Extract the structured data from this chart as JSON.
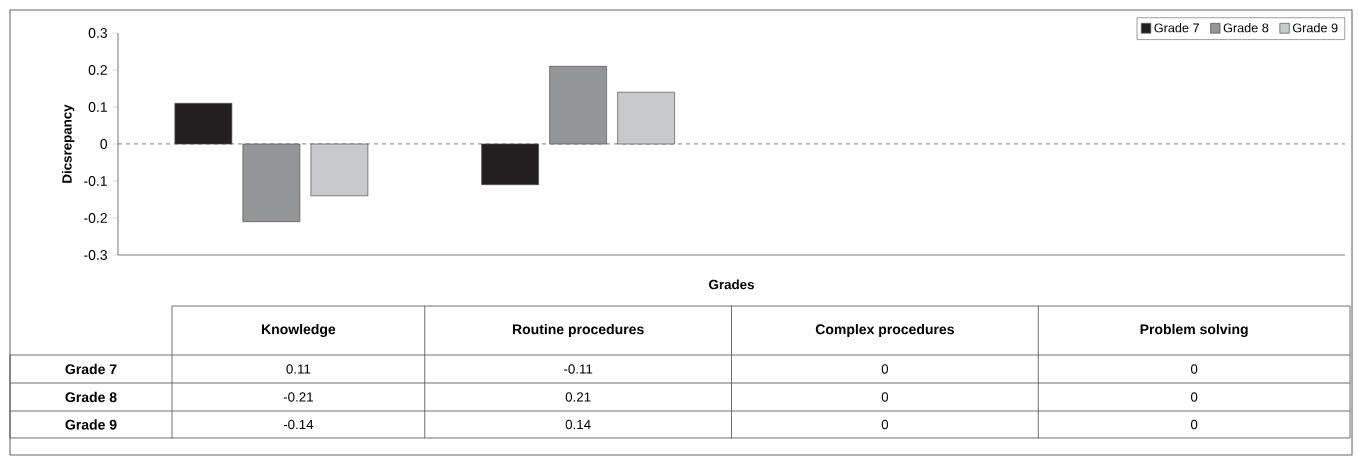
{
  "chart_data": {
    "type": "bar",
    "xlabel": "Grades",
    "ylabel": "Dicsrepancy",
    "categories": [
      "Knowledge",
      "Routine procedures",
      "Complex procedures",
      "Problem solving"
    ],
    "series": [
      {
        "name": "Grade 7",
        "color": "#231f20",
        "values": [
          0.11,
          -0.11,
          0,
          0
        ]
      },
      {
        "name": "Grade 8",
        "color": "#939598",
        "values": [
          -0.21,
          0.21,
          0,
          0
        ]
      },
      {
        "name": "Grade 9",
        "color": "#c8c9cb",
        "values": [
          -0.14,
          0.14,
          0,
          0
        ]
      }
    ],
    "ylim": [
      -0.3,
      0.3
    ],
    "yticks": [
      -0.3,
      -0.2,
      -0.1,
      0,
      0.1,
      0.2,
      0.3
    ],
    "ref_lines": [
      {
        "axis": "y",
        "value": 0,
        "line_style": "dashed",
        "color": "#231f20"
      }
    ],
    "data_labels": true,
    "legend": "top right",
    "grid": false
  }
}
